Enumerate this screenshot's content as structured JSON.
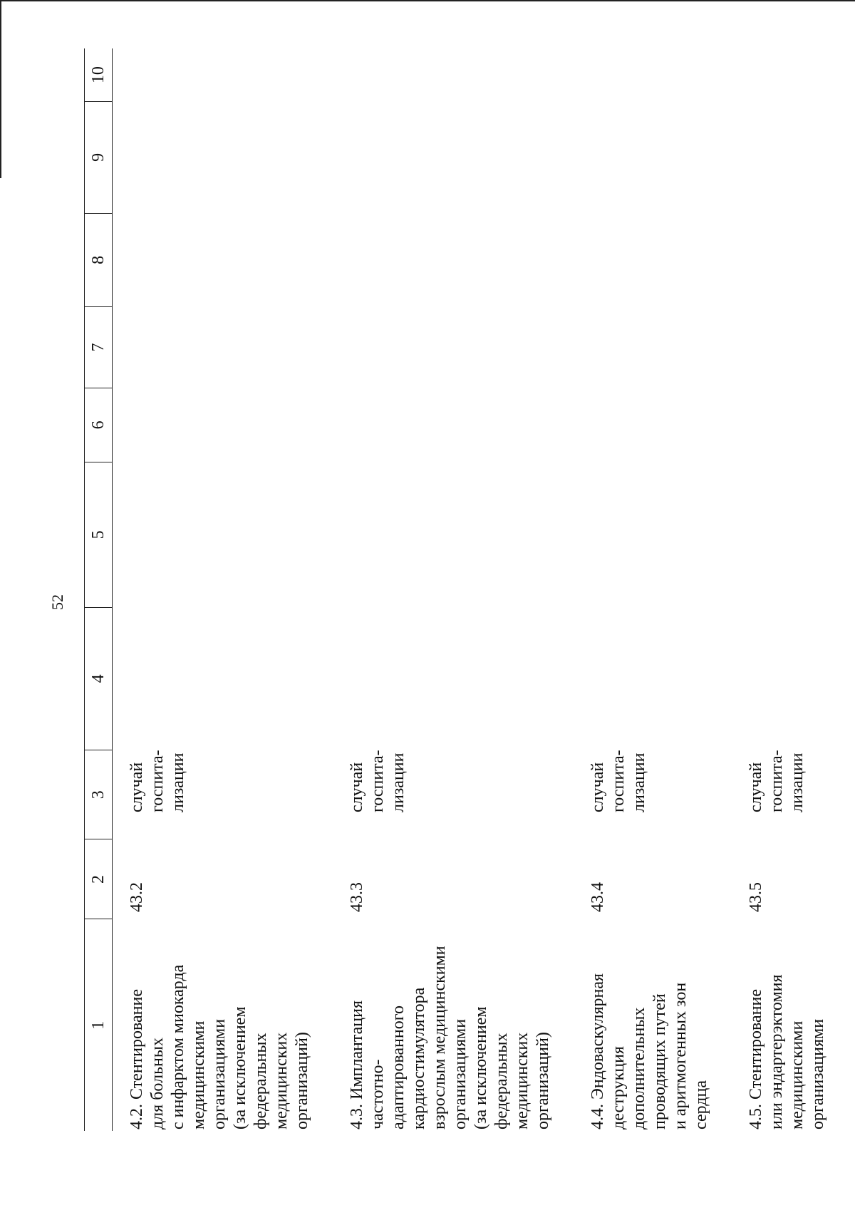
{
  "page_number": "52",
  "table": {
    "headers": [
      "1",
      "2",
      "3",
      "4",
      "5",
      "6",
      "7",
      "8",
      "9",
      "10"
    ],
    "rows": [
      {
        "name": "4.2. Стентирование\nдля больных\nс инфарктом миокарда\nмедицинскими\nорганизациями\n(за исключением\nфедеральных\nмедицинских\nорганизаций)",
        "code": "43.2",
        "unit": "случай\nгоспита-\nлизации"
      },
      {
        "name": "4.3. Имплантация\nчастотно-\nадаптированного\nкардиостимулятора\nвзрослым медицинскими\nорганизациями\n(за исключением\nфедеральных\nмедицинских\nорганизаций)",
        "code": "43.3",
        "unit": "случай\nгоспита-\nлизации"
      },
      {
        "name": "4.4. Эндоваскулярная\nдеструкция\nдополнительных\nпроводящих путей\nи аритмогенных зон\nсердца",
        "code": "43.4",
        "unit": "случай\nгоспита-\nлизации"
      },
      {
        "name": "4.5. Стентирование\nили эндартерэктомия\nмедицинскими\nорганизациями",
        "code": "43.5",
        "unit": "случай\nгоспита-\nлизации"
      }
    ]
  }
}
